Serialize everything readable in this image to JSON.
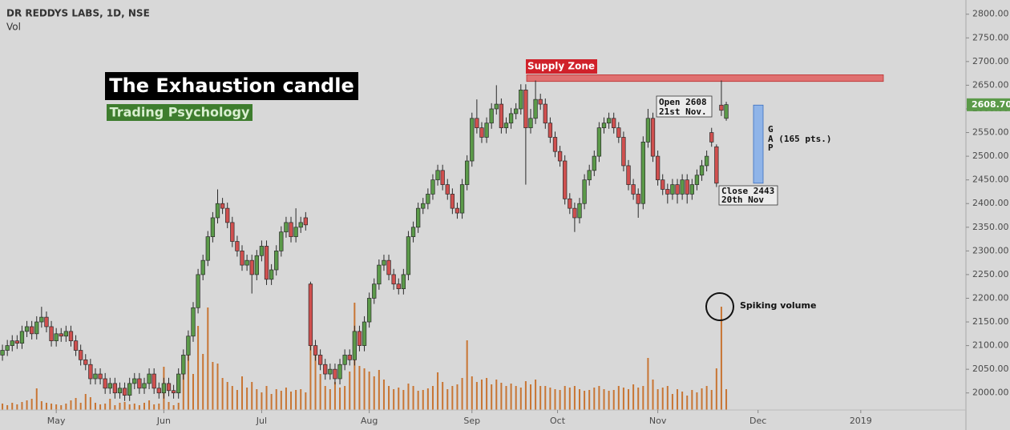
{
  "chart_data": {
    "type": "candlestick",
    "title": "DR REDDYS LABS, 1D, NSE",
    "volume_label": "Vol",
    "open": [
      2080,
      2090,
      2100,
      2110,
      2105,
      2130,
      2140,
      2125,
      2150,
      2160,
      2140,
      2110,
      2125,
      2120,
      2130,
      2110,
      2090,
      2070,
      2060,
      2030,
      2040,
      2030,
      2010,
      2020,
      2000,
      2010,
      1995,
      2020,
      2030,
      2010,
      2020,
      2040,
      2010,
      2000,
      2020,
      2005,
      2000,
      2040,
      2080,
      2120,
      2180,
      2250,
      2280,
      2330,
      2370,
      2400,
      2390,
      2360,
      2320,
      2300,
      2270,
      2280,
      2250,
      2290,
      2310,
      2240,
      2260,
      2300,
      2340,
      2360,
      2330,
      2350,
      2370,
      2230,
      2100,
      2080,
      2060,
      2040,
      2050,
      2030,
      2060,
      2080,
      2070,
      2130,
      2100,
      2150,
      2200,
      2230,
      2270,
      2280,
      2250,
      2230,
      2220,
      2250,
      2330,
      2350,
      2390,
      2400,
      2420,
      2450,
      2470,
      2440,
      2420,
      2390,
      2380,
      2440,
      2490,
      2580,
      2560,
      2540,
      2570,
      2600,
      2610,
      2560,
      2570,
      2590,
      2600,
      2640,
      2560,
      2580,
      2620,
      2610,
      2570,
      2540,
      2510,
      2490,
      2410,
      2390,
      2370,
      2400,
      2450,
      2470,
      2500,
      2560,
      2570,
      2580,
      2560,
      2540,
      2480,
      2440,
      2420,
      2400,
      2530,
      2580,
      2500,
      2450,
      2430,
      2420,
      2440,
      2420,
      2450,
      2420,
      2440,
      2460,
      2480,
      2550,
      2520,
      2608,
      2580
    ],
    "high": [
      2102,
      2112,
      2122,
      2122,
      2142,
      2152,
      2152,
      2162,
      2182,
      2172,
      2152,
      2137,
      2137,
      2142,
      2142,
      2122,
      2102,
      2082,
      2072,
      2052,
      2052,
      2042,
      2032,
      2032,
      2022,
      2022,
      2032,
      2042,
      2042,
      2032,
      2052,
      2052,
      2022,
      2032,
      2032,
      2017,
      2052,
      2092,
      2132,
      2192,
      2262,
      2292,
      2342,
      2382,
      2430,
      2412,
      2402,
      2372,
      2332,
      2312,
      2292,
      2292,
      2302,
      2322,
      2322,
      2272,
      2312,
      2352,
      2372,
      2372,
      2390,
      2372,
      2382,
      2235,
      2112,
      2092,
      2072,
      2062,
      2062,
      2072,
      2092,
      2092,
      2142,
      2142,
      2162,
      2212,
      2242,
      2282,
      2292,
      2292,
      2262,
      2242,
      2262,
      2342,
      2362,
      2402,
      2412,
      2432,
      2462,
      2482,
      2482,
      2452,
      2432,
      2402,
      2452,
      2502,
      2592,
      2620,
      2572,
      2582,
      2612,
      2650,
      2622,
      2582,
      2602,
      2612,
      2652,
      2652,
      2600,
      2660,
      2632,
      2622,
      2582,
      2552,
      2522,
      2502,
      2422,
      2402,
      2412,
      2462,
      2482,
      2512,
      2572,
      2582,
      2592,
      2592,
      2572,
      2552,
      2492,
      2452,
      2432,
      2542,
      2600,
      2592,
      2512,
      2462,
      2442,
      2452,
      2452,
      2462,
      2462,
      2452,
      2472,
      2492,
      2512,
      2560,
      2525,
      2660,
      2615
    ],
    "low": [
      2068,
      2078,
      2088,
      2093,
      2093,
      2118,
      2113,
      2113,
      2138,
      2128,
      2098,
      2098,
      2108,
      2108,
      2098,
      2078,
      2058,
      2048,
      2018,
      2018,
      2018,
      1998,
      1998,
      1988,
      1988,
      1983,
      1983,
      2008,
      1998,
      1998,
      2008,
      1998,
      1988,
      1988,
      1993,
      1988,
      1988,
      2028,
      2068,
      2108,
      2168,
      2238,
      2268,
      2318,
      2358,
      2378,
      2348,
      2308,
      2288,
      2258,
      2258,
      2210,
      2238,
      2278,
      2228,
      2228,
      2248,
      2288,
      2328,
      2318,
      2318,
      2338,
      2343,
      2090,
      2068,
      2048,
      2028,
      2028,
      2018,
      2018,
      2048,
      2058,
      2058,
      2088,
      2088,
      2138,
      2188,
      2218,
      2258,
      2238,
      2218,
      2208,
      2208,
      2238,
      2318,
      2338,
      2378,
      2388,
      2408,
      2438,
      2428,
      2408,
      2378,
      2368,
      2368,
      2428,
      2478,
      2548,
      2528,
      2528,
      2558,
      2588,
      2548,
      2548,
      2558,
      2578,
      2588,
      2440,
      2548,
      2568,
      2598,
      2558,
      2528,
      2498,
      2478,
      2398,
      2378,
      2340,
      2358,
      2388,
      2438,
      2458,
      2488,
      2548,
      2558,
      2548,
      2528,
      2468,
      2428,
      2408,
      2370,
      2388,
      2518,
      2488,
      2438,
      2418,
      2400,
      2408,
      2400,
      2408,
      2400,
      2408,
      2428,
      2448,
      2468,
      2520,
      2435,
      2585,
      2575
    ],
    "close": [
      2090,
      2100,
      2110,
      2105,
      2130,
      2140,
      2125,
      2150,
      2160,
      2140,
      2110,
      2125,
      2120,
      2130,
      2110,
      2090,
      2070,
      2060,
      2030,
      2040,
      2030,
      2010,
      2020,
      2000,
      2010,
      1995,
      2020,
      2030,
      2010,
      2020,
      2040,
      2010,
      2000,
      2020,
      2005,
      2000,
      2040,
      2080,
      2120,
      2180,
      2250,
      2280,
      2330,
      2370,
      2400,
      2390,
      2360,
      2320,
      2300,
      2270,
      2280,
      2250,
      2290,
      2310,
      2240,
      2260,
      2300,
      2340,
      2360,
      2330,
      2350,
      2360,
      2355,
      2100,
      2080,
      2060,
      2040,
      2050,
      2030,
      2060,
      2080,
      2070,
      2130,
      2100,
      2150,
      2200,
      2230,
      2270,
      2280,
      2250,
      2230,
      2220,
      2250,
      2330,
      2350,
      2390,
      2400,
      2420,
      2450,
      2470,
      2440,
      2420,
      2390,
      2380,
      2440,
      2490,
      2580,
      2560,
      2540,
      2570,
      2600,
      2610,
      2560,
      2570,
      2590,
      2600,
      2640,
      2560,
      2580,
      2620,
      2610,
      2570,
      2540,
      2510,
      2490,
      2410,
      2390,
      2370,
      2400,
      2450,
      2470,
      2500,
      2560,
      2570,
      2580,
      2560,
      2540,
      2480,
      2440,
      2420,
      2400,
      2530,
      2580,
      2500,
      2450,
      2430,
      2420,
      2440,
      2420,
      2450,
      2420,
      2440,
      2460,
      2480,
      2500,
      2530,
      2443,
      2597,
      2609
    ],
    "volume": [
      80,
      60,
      90,
      70,
      100,
      120,
      140,
      270,
      110,
      90,
      80,
      70,
      60,
      80,
      120,
      150,
      90,
      200,
      160,
      90,
      70,
      80,
      140,
      60,
      90,
      100,
      70,
      80,
      60,
      90,
      120,
      70,
      80,
      540,
      100,
      60,
      90,
      600,
      820,
      450,
      1050,
      700,
      1280,
      600,
      580,
      400,
      350,
      300,
      250,
      420,
      280,
      350,
      260,
      220,
      300,
      200,
      260,
      240,
      280,
      230,
      250,
      260,
      220,
      1580,
      700,
      450,
      300,
      260,
      350,
      280,
      300,
      480,
      1340,
      550,
      520,
      480,
      420,
      500,
      380,
      300,
      260,
      280,
      250,
      330,
      300,
      240,
      250,
      270,
      300,
      470,
      350,
      260,
      300,
      320,
      400,
      870,
      420,
      350,
      380,
      400,
      320,
      380,
      340,
      300,
      330,
      300,
      280,
      360,
      320,
      380,
      300,
      300,
      280,
      260,
      250,
      300,
      280,
      300,
      260,
      240,
      250,
      280,
      300,
      260,
      240,
      250,
      300,
      280,
      260,
      320,
      280,
      300,
      650,
      380,
      260,
      280,
      300,
      200,
      260,
      230,
      180,
      250,
      220,
      270,
      300,
      250,
      520,
      1290,
      260
    ],
    "up_color": "#5b9a49",
    "down_color": "#d0504f",
    "volume_color": "#c87533",
    "xlim": [
      -0.5,
      197
    ],
    "xticks": [
      {
        "value": 11,
        "label": "May"
      },
      {
        "value": 33,
        "label": "Jun"
      },
      {
        "value": 53,
        "label": "Jul"
      },
      {
        "value": 75,
        "label": "Aug"
      },
      {
        "value": 96,
        "label": "Sep"
      },
      {
        "value": 113.5,
        "label": "Oct"
      },
      {
        "value": 134,
        "label": "Nov"
      },
      {
        "value": 154.5,
        "label": "Dec"
      },
      {
        "value": 175.5,
        "label": "2019"
      }
    ],
    "ylim": [
      1964,
      2830
    ],
    "yticks": [
      {
        "value": 2000,
        "label": "2000.00"
      },
      {
        "value": 2050,
        "label": "2050.00"
      },
      {
        "value": 2100,
        "label": "2100.00"
      },
      {
        "value": 2150,
        "label": "2150.00"
      },
      {
        "value": 2200,
        "label": "2200.00"
      },
      {
        "value": 2250,
        "label": "2250.00"
      },
      {
        "value": 2300,
        "label": "2300.00"
      },
      {
        "value": 2350,
        "label": "2350.00"
      },
      {
        "value": 2400,
        "label": "2400.00"
      },
      {
        "value": 2450,
        "label": "2450.00"
      },
      {
        "value": 2500,
        "label": "2500.00"
      },
      {
        "value": 2550,
        "label": "2550.00"
      },
      {
        "value": 2600,
        "label": "2600.00"
      },
      {
        "value": 2650,
        "label": "2650.00"
      },
      {
        "value": 2700,
        "label": "2700.00"
      },
      {
        "value": 2750,
        "label": "2750.00"
      },
      {
        "value": 2800,
        "label": "2800.00"
      }
    ],
    "vlim": [
      0,
      5120
    ],
    "last_price": {
      "value": 2608.7,
      "label": "2608.70"
    },
    "annotations": {
      "headline": "The Exhaustion candle",
      "subhead": "Trading Psychology",
      "supply_zone": {
        "label": "Supply Zone",
        "range": [
          2658,
          2672
        ]
      },
      "open_note": [
        "Open 2608",
        "21st Nov."
      ],
      "close_note": [
        "Close 2443",
        "20th Nov"
      ],
      "gap": {
        "lines": [
          "G",
          "A (165 pts.)",
          "P"
        ],
        "range": [
          2443,
          2608
        ]
      },
      "volume_note": "Spiking volume"
    }
  }
}
